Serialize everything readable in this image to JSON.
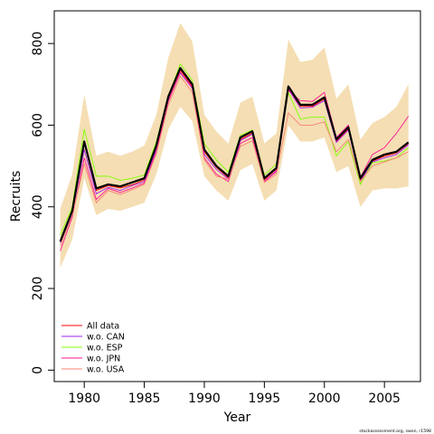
{
  "chart_data": {
    "type": "line",
    "xlabel": "Year",
    "ylabel": "Recruits",
    "xlim": [
      1977.5,
      2008
    ],
    "ylim": [
      -28,
      880
    ],
    "x_ticks": [
      1980,
      1985,
      1990,
      1995,
      2000,
      2005
    ],
    "y_ticks": [
      0,
      200,
      400,
      600,
      800
    ],
    "grid": false,
    "legend_position": "bottom-left",
    "credit": "stockassessment.org, swon, r1598",
    "x": [
      1978,
      1979,
      1980,
      1981,
      1982,
      1983,
      1984,
      1985,
      1986,
      1987,
      1988,
      1989,
      1990,
      1991,
      1992,
      1993,
      1994,
      1995,
      1996,
      1997,
      1998,
      1999,
      2000,
      2001,
      2002,
      2003,
      2004,
      2005,
      2006,
      2007
    ],
    "band": {
      "color": "#f5deb3",
      "lower": [
        250,
        320,
        470,
        380,
        395,
        390,
        400,
        410,
        480,
        590,
        645,
        610,
        475,
        440,
        415,
        490,
        505,
        415,
        440,
        600,
        560,
        560,
        570,
        485,
        500,
        400,
        440,
        445,
        445,
        450
      ],
      "upper": [
        395,
        480,
        675,
        525,
        535,
        525,
        535,
        550,
        625,
        765,
        850,
        805,
        625,
        585,
        555,
        655,
        670,
        555,
        580,
        810,
        755,
        760,
        790,
        665,
        700,
        565,
        605,
        620,
        645,
        700
      ]
    },
    "main": {
      "color": "#000000",
      "values": [
        315,
        390,
        560,
        445,
        455,
        450,
        460,
        470,
        550,
        670,
        740,
        700,
        540,
        500,
        475,
        570,
        585,
        470,
        495,
        695,
        650,
        650,
        668,
        565,
        595,
        470,
        515,
        528,
        535,
        558
      ]
    },
    "series": [
      {
        "name": "All data",
        "color": "#ff0000",
        "values": [
          318,
          393,
          555,
          440,
          452,
          446,
          454,
          466,
          545,
          665,
          735,
          695,
          535,
          497,
          471,
          565,
          580,
          466,
          492,
          690,
          646,
          646,
          664,
          560,
          590,
          466,
          512,
          524,
          532,
          555
        ]
      },
      {
        "name": "w.o. CAN",
        "color": "#a020f0",
        "values": [
          312,
          385,
          540,
          432,
          448,
          440,
          452,
          462,
          540,
          660,
          728,
          690,
          528,
          492,
          468,
          562,
          578,
          462,
          488,
          688,
          642,
          644,
          660,
          558,
          588,
          462,
          510,
          520,
          528,
          552
        ]
      },
      {
        "name": "w.o. ESP",
        "color": "#7fff00",
        "values": [
          330,
          400,
          590,
          475,
          475,
          465,
          470,
          478,
          560,
          670,
          750,
          710,
          555,
          515,
          485,
          575,
          588,
          478,
          505,
          680,
          615,
          620,
          620,
          525,
          560,
          455,
          508,
          512,
          520,
          545
        ]
      },
      {
        "name": "w.o. JPN",
        "color": "#ff1493",
        "values": [
          292,
          375,
          520,
          418,
          445,
          435,
          446,
          458,
          535,
          658,
          730,
          692,
          520,
          480,
          462,
          555,
          570,
          462,
          486,
          685,
          660,
          658,
          680,
          570,
          600,
          472,
          528,
          545,
          580,
          622
        ]
      },
      {
        "name": "w.o. USA",
        "color": "#fa8072",
        "values": [
          305,
          380,
          505,
          410,
          440,
          430,
          442,
          455,
          530,
          650,
          720,
          680,
          515,
          475,
          468,
          548,
          562,
          460,
          480,
          630,
          600,
          600,
          608,
          535,
          565,
          462,
          500,
          510,
          520,
          535
        ]
      }
    ]
  }
}
